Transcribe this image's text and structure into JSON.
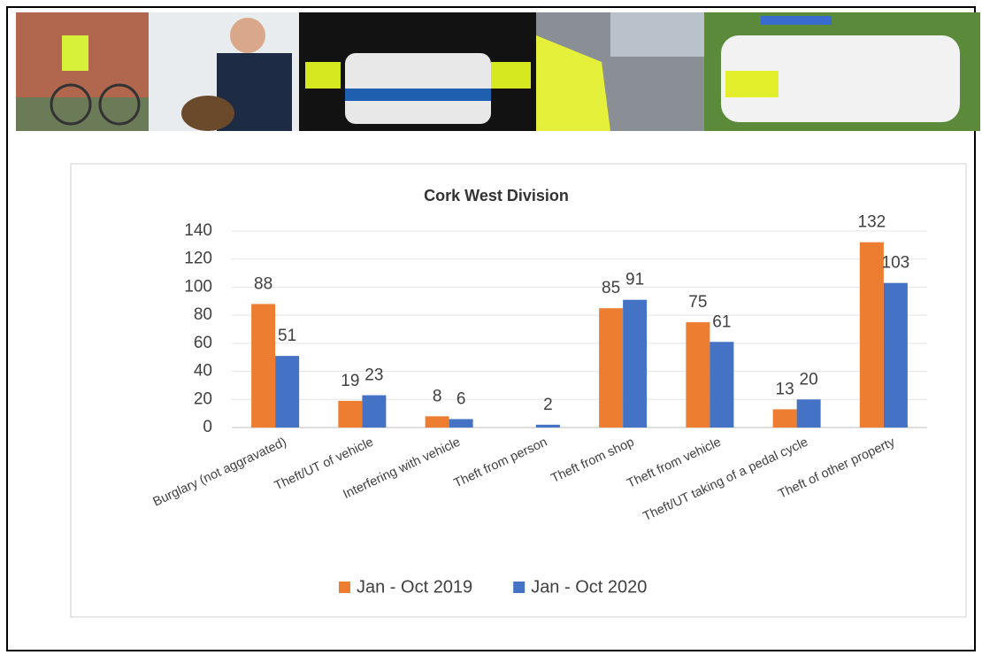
{
  "chart_data": {
    "type": "bar",
    "title": "Cork West Division",
    "categories": [
      "Burglary (not aggravated)",
      "Theft/UT of vehicle",
      "Interfering with vehicle",
      "Theft from person",
      "Theft from shop",
      "Theft from vehicle",
      "Theft/UT taking of a pedal cycle",
      "Theft of other property"
    ],
    "series": [
      {
        "name": "Jan - Oct 2019",
        "color": "#ed7d31",
        "values": [
          88,
          19,
          8,
          null,
          85,
          75,
          13,
          132
        ]
      },
      {
        "name": "Jan - Oct 2020",
        "color": "#4472c4",
        "values": [
          51,
          23,
          6,
          2,
          91,
          61,
          20,
          103
        ]
      }
    ],
    "ylim": [
      0,
      140
    ],
    "yticks": [
      0,
      20,
      40,
      60,
      80,
      100,
      120,
      140
    ],
    "grid": true,
    "legend": "bottom"
  }
}
